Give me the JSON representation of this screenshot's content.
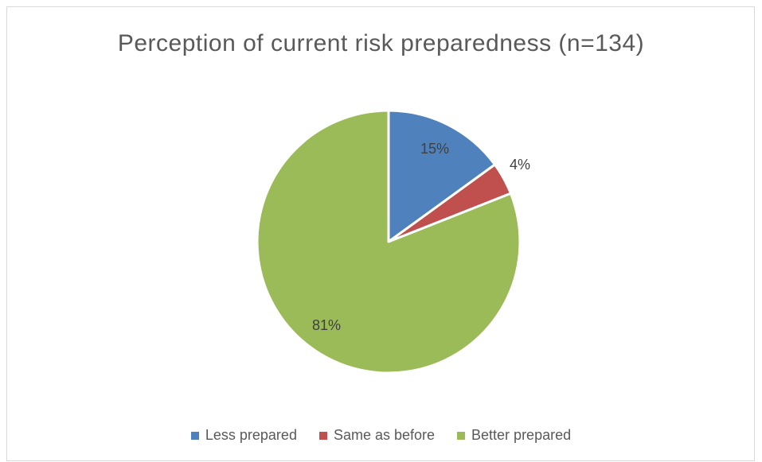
{
  "chart_data": {
    "type": "pie",
    "title": "Perception of current risk preparedness (n=134)",
    "categories": [
      "Less prepared",
      "Same as before",
      "Better prepared"
    ],
    "values": [
      15,
      4,
      81
    ],
    "labels": [
      "15%",
      "4%",
      "81%"
    ],
    "colors": [
      "#4f81bd",
      "#c0504d",
      "#9bbb59"
    ],
    "legend_position": "bottom"
  }
}
